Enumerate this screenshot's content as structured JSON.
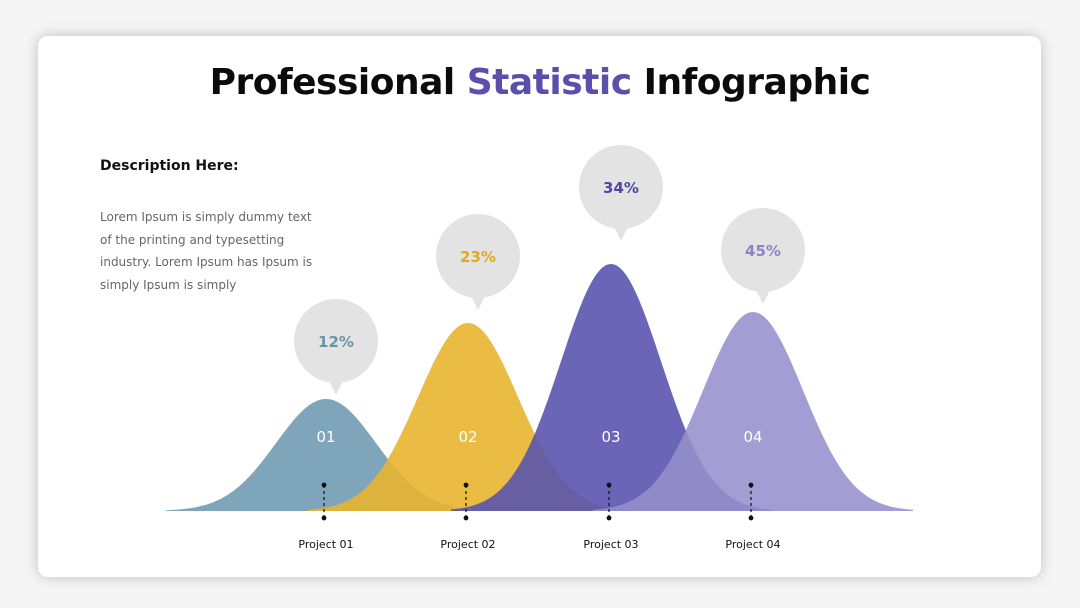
{
  "title": {
    "part1": "Professional ",
    "accent": "Statistic",
    "part3": " Infographic"
  },
  "description": {
    "heading": "Description Here:",
    "body": "Lorem Ipsum is simply dummy text of the printing and typesetting industry. Lorem Ipsum has Ipsum is simply Ipsum is simply"
  },
  "colors": {
    "accent": "#5a4fab",
    "bubble": "#e3e3e3",
    "p1": "#7fa5ba",
    "p2": "#e8b530",
    "p3": "#5a54ae",
    "p4": "#9590cc"
  },
  "chart_data": {
    "type": "area",
    "categories": [
      "Project 01",
      "Project 02",
      "Project 03",
      "Project 04"
    ],
    "numbers": [
      "01",
      "02",
      "03",
      "04"
    ],
    "value_labels": [
      "12%",
      "23%",
      "34%",
      "45%"
    ],
    "values": [
      12,
      23,
      34,
      45
    ],
    "series_colors": [
      "#7fa5ba",
      "#e8b530",
      "#5a54ae",
      "#9590cc"
    ],
    "value_label_colors": [
      "#6b93a8",
      "#e0a91f",
      "#4f47a3",
      "#8b84c4"
    ]
  }
}
